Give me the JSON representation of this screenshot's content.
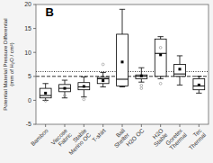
{
  "chart_data": {
    "type": "box",
    "ylabel": "Potential Material Pressure Differential\n(mm of H₂O / cm²)",
    "annotation": "B",
    "categories": [
      "Bamboo",
      "Viscose\nFabric",
      "Stable\nMerino OC",
      "T-shirt",
      "Ball\nShelter",
      "H2O OC",
      "H2O\nStable",
      "Goretex\nThermal",
      "Tec\nThermal"
    ],
    "boxes": [
      {
        "whislo": 0.0,
        "q1": 0.5,
        "med": 1.0,
        "q3": 2.5,
        "whishi": 3.5,
        "mean": 1.5,
        "fliers": [
          -0.1
        ]
      },
      {
        "whislo": 0.5,
        "q1": 1.8,
        "med": 2.5,
        "q3": 3.3,
        "whishi": 4.2,
        "mean": 2.5,
        "fliers": [
          1.0
        ]
      },
      {
        "whislo": 0.7,
        "q1": 2.2,
        "med": 2.8,
        "q3": 3.7,
        "whishi": 4.9,
        "mean": 2.9,
        "fliers": [
          0.2
        ]
      },
      {
        "whislo": 2.8,
        "q1": 3.5,
        "med": 4.5,
        "q3": 4.8,
        "whishi": 5.8,
        "mean": 4.1,
        "fliers": [
          7.5
        ]
      },
      {
        "whislo": 2.8,
        "q1": 3.0,
        "med": 4.4,
        "q3": 13.8,
        "whishi": 19.0,
        "mean": 8.0,
        "fliers": []
      },
      {
        "whislo": 3.8,
        "q1": 4.5,
        "med": 5.0,
        "q3": 5.3,
        "whishi": 6.8,
        "mean": 5.1,
        "fliers": [
          2.5,
          3.1
        ]
      },
      {
        "whislo": 4.5,
        "q1": 5.0,
        "med": 9.8,
        "q3": 12.8,
        "whishi": 13.3,
        "mean": 9.5,
        "fliers": [
          3.5,
          11.0
        ]
      },
      {
        "whislo": 3.2,
        "q1": 5.0,
        "med": 5.5,
        "q3": 7.5,
        "whishi": 9.3,
        "mean": 6.5,
        "fliers": []
      },
      {
        "whislo": 1.5,
        "q1": 2.2,
        "med": 3.0,
        "q3": 4.5,
        "whishi": 5.0,
        "mean": 3.2,
        "fliers": []
      }
    ],
    "reference_lines": [
      {
        "value": 5.0,
        "line_style": "dashed"
      },
      {
        "value": 6.0,
        "line_style": "dotted"
      }
    ],
    "color": "white",
    "marker": "square",
    "ylim": [
      -5,
      20
    ],
    "yticks": [
      -5,
      0,
      5,
      10,
      15,
      20
    ]
  }
}
